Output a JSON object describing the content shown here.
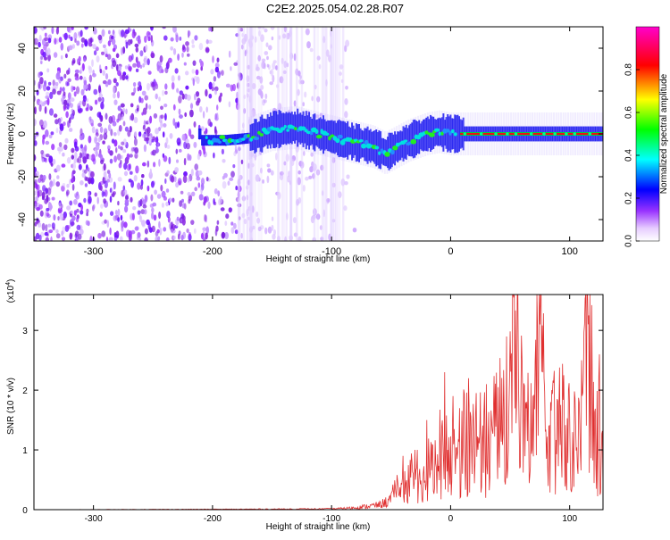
{
  "title": "C2E2.2025.054.02.28.R07",
  "chart_data": [
    {
      "type": "heatmap",
      "xlabel": "Height of straight line (km)",
      "ylabel": "Frequency (Hz)",
      "xlim": [
        -350,
        128
      ],
      "ylim": [
        -50,
        50
      ],
      "xticks": [
        -300,
        -200,
        -100,
        0,
        100
      ],
      "yticks": [
        -40,
        -20,
        0,
        20,
        40
      ],
      "colorbar": {
        "label": "Normalized spectral amplitude",
        "range": [
          0.0,
          1.0
        ],
        "ticks": [
          0.0,
          0.2,
          0.4,
          0.6,
          0.8
        ],
        "tick_labels": [
          "0.0",
          "0.2",
          "0.4",
          "0.6",
          "0.8"
        ],
        "colors": [
          "#ffffff",
          "#cc99ff",
          "#7700ff",
          "#0000ff",
          "#00ffff",
          "#00ff00",
          "#ffff00",
          "#ff0000",
          "#ff00cc"
        ]
      },
      "ridge": {
        "x": [
          -210,
          -190,
          -170,
          -150,
          -130,
          -110,
          -95,
          -80,
          -65,
          -55,
          -45,
          -35,
          -20,
          -10,
          0,
          10,
          128
        ],
        "y": [
          -3,
          -3,
          -2,
          2,
          3,
          0,
          -2,
          -4,
          -6,
          -9,
          -6,
          -3,
          0,
          1,
          0,
          0,
          0
        ]
      },
      "noise_region_x": [
        -350,
        -100
      ]
    },
    {
      "type": "line",
      "xlabel": "Height of straight line (km)",
      "ylabel": "SNR (10 * v/v)",
      "y_multiplier": "(x10",
      "y_multiplier_exp": "4",
      "y_multiplier_close": ")",
      "xlim": [
        -350,
        128
      ],
      "ylim": [
        0,
        3.6
      ],
      "xticks": [
        -300,
        -200,
        -100,
        0,
        100
      ],
      "yticks": [
        0,
        1,
        2,
        3
      ],
      "series": [
        {
          "color": "#e03030",
          "x": [
            -350,
            -200,
            -100,
            -80,
            -60,
            -50,
            -40,
            -30,
            -20,
            -10,
            0,
            10,
            20,
            30,
            40,
            50,
            53,
            60,
            70,
            75,
            80,
            90,
            100,
            110,
            115,
            120,
            128
          ],
          "y": [
            0.0,
            0.01,
            0.02,
            0.05,
            0.12,
            0.25,
            0.45,
            0.6,
            0.8,
            1.0,
            1.1,
            1.2,
            1.3,
            1.2,
            1.5,
            1.8,
            3.55,
            1.6,
            1.3,
            3.1,
            1.4,
            1.5,
            1.4,
            1.8,
            3.25,
            1.7,
            1.2
          ],
          "peak_x": [
            -40,
            -30,
            -20,
            -5,
            2,
            15,
            30,
            40,
            53,
            60,
            75,
            85,
            95,
            110,
            116,
            125
          ],
          "peak_y": [
            0.9,
            1.0,
            1.5,
            2.3,
            1.9,
            2.2,
            2.1,
            2.05,
            3.55,
            2.5,
            3.1,
            2.0,
            2.25,
            2.5,
            3.25,
            2.6
          ]
        }
      ]
    }
  ]
}
